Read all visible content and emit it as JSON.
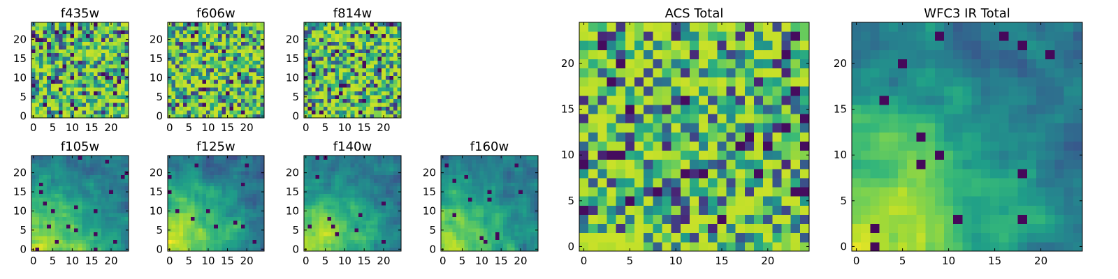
{
  "chart_data": [
    {
      "type": "heatmap",
      "title": "f435w",
      "grid": false,
      "xlim": [
        -0.5,
        24.5
      ],
      "ylim": [
        -0.5,
        24.5
      ],
      "x_ticks": [
        "0",
        "5",
        "10",
        "15",
        "20"
      ],
      "y_ticks": [
        "0",
        "5",
        "10",
        "15",
        "20"
      ],
      "matrix_shape": [
        25,
        25
      ],
      "value_range": [
        0,
        1
      ],
      "colormap": "viridis",
      "pattern": "noise",
      "seed": 11
    },
    {
      "type": "heatmap",
      "title": "f606w",
      "grid": false,
      "xlim": [
        -0.5,
        24.5
      ],
      "ylim": [
        -0.5,
        24.5
      ],
      "x_ticks": [
        "0",
        "5",
        "10",
        "15",
        "20"
      ],
      "y_ticks": [
        "0",
        "5",
        "10",
        "15",
        "20"
      ],
      "matrix_shape": [
        25,
        25
      ],
      "value_range": [
        0,
        1
      ],
      "colormap": "viridis",
      "pattern": "noise",
      "seed": 23
    },
    {
      "type": "heatmap",
      "title": "f814w",
      "grid": false,
      "xlim": [
        -0.5,
        24.5
      ],
      "ylim": [
        -0.5,
        24.5
      ],
      "x_ticks": [
        "0",
        "5",
        "10",
        "15",
        "20"
      ],
      "y_ticks": [
        "0",
        "5",
        "10",
        "15",
        "20"
      ],
      "matrix_shape": [
        25,
        25
      ],
      "value_range": [
        0,
        1
      ],
      "colormap": "viridis",
      "pattern": "noise",
      "seed": 37
    },
    {
      "type": "heatmap",
      "title": "f105w",
      "grid": false,
      "xlim": [
        -0.5,
        24.5
      ],
      "ylim": [
        -0.5,
        24.5
      ],
      "x_ticks": [
        "0",
        "5",
        "10",
        "15",
        "20"
      ],
      "y_ticks": [
        "0",
        "5",
        "10",
        "15",
        "20"
      ],
      "matrix_shape": [
        25,
        25
      ],
      "value_range": [
        0,
        1
      ],
      "colormap": "viridis",
      "pattern": "gradient",
      "seed": 41
    },
    {
      "type": "heatmap",
      "title": "f125w",
      "grid": false,
      "xlim": [
        -0.5,
        24.5
      ],
      "ylim": [
        -0.5,
        24.5
      ],
      "x_ticks": [
        "0",
        "5",
        "10",
        "15",
        "20"
      ],
      "y_ticks": [
        "0",
        "5",
        "10",
        "15",
        "20"
      ],
      "matrix_shape": [
        25,
        25
      ],
      "value_range": [
        0,
        1
      ],
      "colormap": "viridis",
      "pattern": "gradient",
      "seed": 53
    },
    {
      "type": "heatmap",
      "title": "f140w",
      "grid": false,
      "xlim": [
        -0.5,
        24.5
      ],
      "ylim": [
        -0.5,
        24.5
      ],
      "x_ticks": [
        "0",
        "5",
        "10",
        "15",
        "20"
      ],
      "y_ticks": [
        "0",
        "5",
        "10",
        "15",
        "20"
      ],
      "matrix_shape": [
        25,
        25
      ],
      "value_range": [
        0,
        1
      ],
      "colormap": "viridis",
      "pattern": "gradient",
      "seed": 67
    },
    {
      "type": "heatmap",
      "title": "f160w",
      "grid": false,
      "xlim": [
        -0.5,
        24.5
      ],
      "ylim": [
        -0.5,
        24.5
      ],
      "x_ticks": [
        "0",
        "5",
        "10",
        "15",
        "20"
      ],
      "y_ticks": [
        "0",
        "5",
        "10",
        "15",
        "20"
      ],
      "matrix_shape": [
        25,
        25
      ],
      "value_range": [
        0,
        1
      ],
      "colormap": "viridis",
      "pattern": "gradient",
      "seed": 79
    },
    {
      "type": "heatmap",
      "title": "ACS Total",
      "grid": false,
      "xlim": [
        -0.5,
        24.5
      ],
      "ylim": [
        -0.5,
        24.5
      ],
      "x_ticks": [
        "0",
        "5",
        "10",
        "15",
        "20"
      ],
      "y_ticks": [
        "0",
        "5",
        "10",
        "15",
        "20"
      ],
      "matrix_shape": [
        25,
        25
      ],
      "value_range": [
        0,
        1
      ],
      "colormap": "viridis",
      "pattern": "noise",
      "seed": 97
    },
    {
      "type": "heatmap",
      "title": "WFC3 IR Total",
      "grid": false,
      "xlim": [
        -0.5,
        24.5
      ],
      "ylim": [
        -0.5,
        24.5
      ],
      "x_ticks": [
        "0",
        "5",
        "10",
        "15",
        "20"
      ],
      "y_ticks": [
        "0",
        "5",
        "10",
        "15",
        "20"
      ],
      "matrix_shape": [
        25,
        25
      ],
      "value_range": [
        0,
        1
      ],
      "colormap": "viridis",
      "pattern": "gradient",
      "seed": 101
    }
  ],
  "colors": {
    "viridis": [
      "#440154",
      "#482878",
      "#3e4989",
      "#31688e",
      "#26828e",
      "#1f9e89",
      "#35b779",
      "#6ece58",
      "#b5de2b",
      "#fde725"
    ],
    "axis": "#000000",
    "background": "#ffffff"
  }
}
